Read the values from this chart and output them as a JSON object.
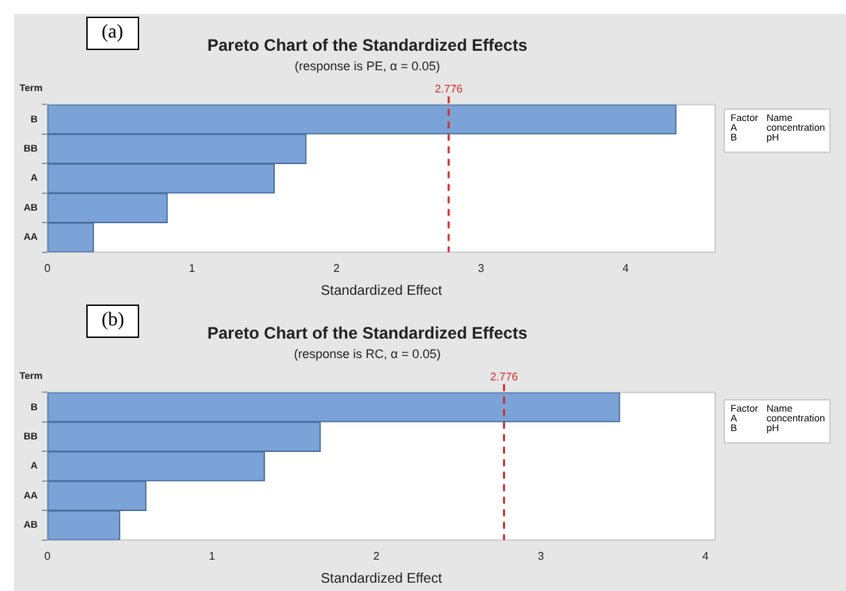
{
  "chart_data": [
    {
      "type": "bar",
      "orientation": "horizontal",
      "title": "Pareto Chart of the Standardized Effects",
      "subtitle": "(response is PE, α = 0.05)",
      "xlabel": "Standardized Effect",
      "ylabel": "Term",
      "categories": [
        "B",
        "BB",
        "A",
        "AB",
        "AA"
      ],
      "values": [
        4.35,
        1.79,
        1.57,
        0.83,
        0.32
      ],
      "color": "#7ba3d8",
      "xlim": [
        0,
        4.62
      ],
      "xticks": [
        0,
        1,
        2,
        3,
        4
      ],
      "grid": false,
      "legend": false,
      "ref_lines": [
        {
          "axis": "x",
          "value": 2.776,
          "label": "2.776",
          "color": "#d03030",
          "line_style": "dashed"
        }
      ],
      "annotations": [
        "(a)",
        "Factor",
        "Name",
        "A",
        "concentration",
        "B",
        "pH"
      ]
    },
    {
      "type": "bar",
      "orientation": "horizontal",
      "title": "Pareto Chart of the Standardized Effects",
      "subtitle": "(response is RC, α = 0.05)",
      "xlabel": "Standardized Effect",
      "ylabel": "Term",
      "categories": [
        "B",
        "BB",
        "A",
        "AA",
        "AB"
      ],
      "values": [
        3.48,
        1.66,
        1.32,
        0.6,
        0.44
      ],
      "color": "#7ba3d8",
      "xlim": [
        0,
        4.06
      ],
      "xticks": [
        0,
        1,
        2,
        3,
        4
      ],
      "grid": false,
      "legend": false,
      "ref_lines": [
        {
          "axis": "x",
          "value": 2.776,
          "label": "2.776",
          "color": "#d03030",
          "line_style": "dashed"
        }
      ],
      "annotations": [
        "(b)",
        "Factor",
        "Name",
        "A",
        "concentration",
        "B",
        "pH"
      ]
    }
  ]
}
